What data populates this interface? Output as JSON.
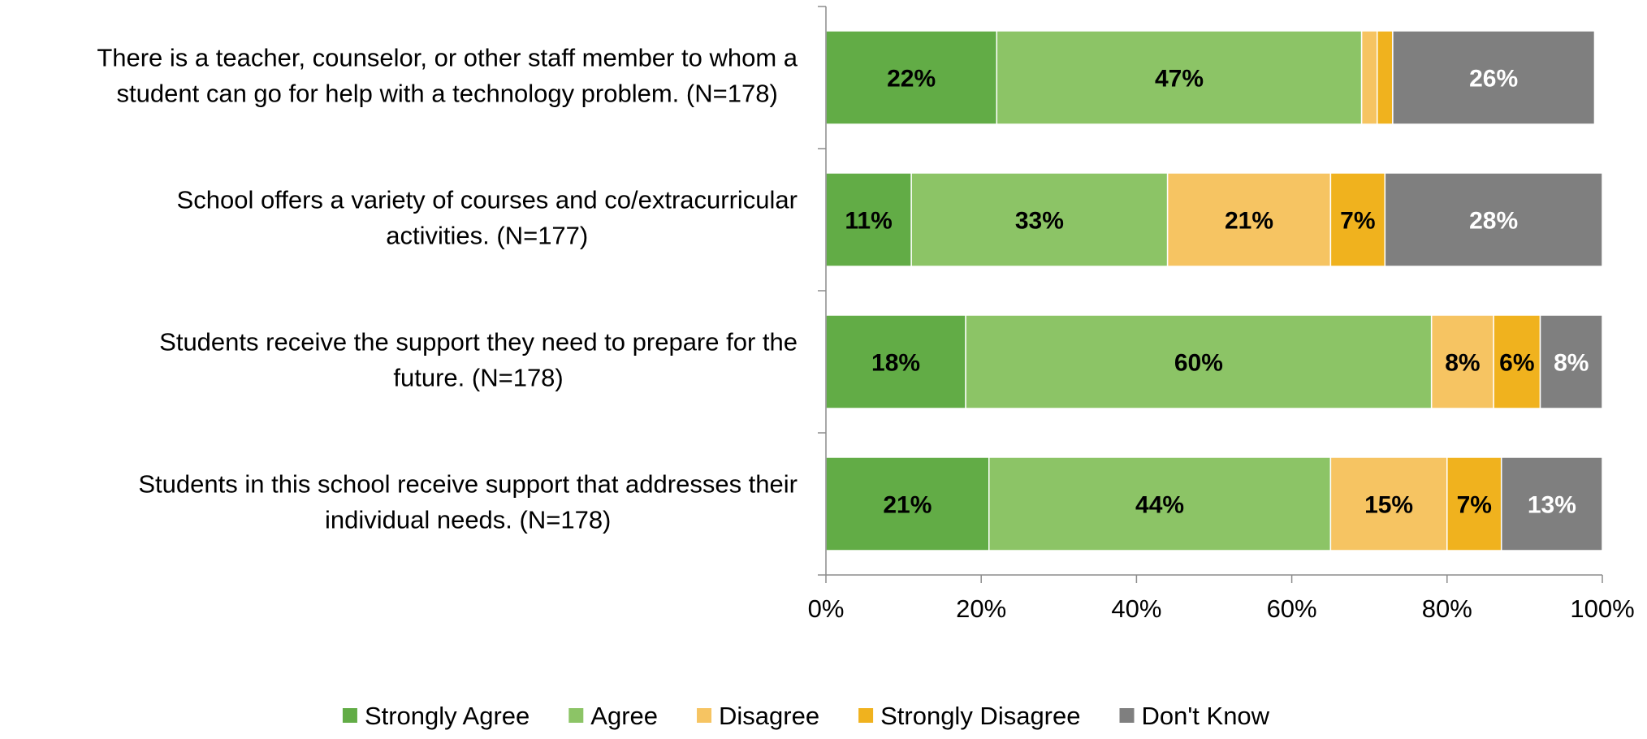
{
  "chart_data": {
    "type": "bar",
    "orientation": "horizontal",
    "stacked": true,
    "categories": [
      "There is a teacher, counselor, or other staff member to whom a student can go for help with a technology problem. (N=178)",
      "School offers a variety of courses and co/extracurricular activities. (N=177)",
      "Students receive the support they need to prepare for the future. (N=178)",
      "Students in this school receive support that addresses their individual needs. (N=178)"
    ],
    "category_lines": [
      [
        "There is a teacher, counselor, or other staff member to whom a",
        "student can go for help with a technology problem. (N=178)"
      ],
      [
        "School offers a variety of courses and co/extracurricular",
        "activities. (N=177)"
      ],
      [
        "Students receive the support they need to prepare for the",
        "future. (N=178)"
      ],
      [
        "Students in this school receive support that addresses their",
        "individual needs. (N=178)"
      ]
    ],
    "series": [
      {
        "name": "Strongly Agree",
        "color": "#62AC46",
        "label_color": "#000000",
        "values": [
          22,
          11,
          18,
          21
        ],
        "labels": [
          "22%",
          "11%",
          "18%",
          "21%"
        ]
      },
      {
        "name": "Agree",
        "color": "#8CC466",
        "label_color": "#000000",
        "values": [
          47,
          33,
          60,
          44
        ],
        "labels": [
          "47%",
          "33%",
          "60%",
          "44%"
        ]
      },
      {
        "name": "Disagree",
        "color": "#F6C462",
        "label_color": "#000000",
        "values": [
          2,
          21,
          8,
          15
        ],
        "labels": [
          "",
          "21%",
          "8%",
          "15%"
        ]
      },
      {
        "name": "Strongly Disagree",
        "color": "#F0B21E",
        "label_color": "#000000",
        "values": [
          2,
          7,
          6,
          7
        ],
        "labels": [
          "",
          "7%",
          "6%",
          "7%"
        ]
      },
      {
        "name": "Don't Know",
        "color": "#7F7F7F",
        "label_color": "#FFFFFF",
        "values": [
          26,
          28,
          8,
          13
        ],
        "labels": [
          "26%",
          "28%",
          "8%",
          "13%"
        ]
      }
    ],
    "xlim": [
      0,
      100
    ],
    "xticks": [
      0,
      20,
      40,
      60,
      80,
      100
    ],
    "xtick_labels": [
      "0%",
      "20%",
      "40%",
      "60%",
      "80%",
      "100%"
    ],
    "legend_position": "bottom",
    "grid": false
  }
}
